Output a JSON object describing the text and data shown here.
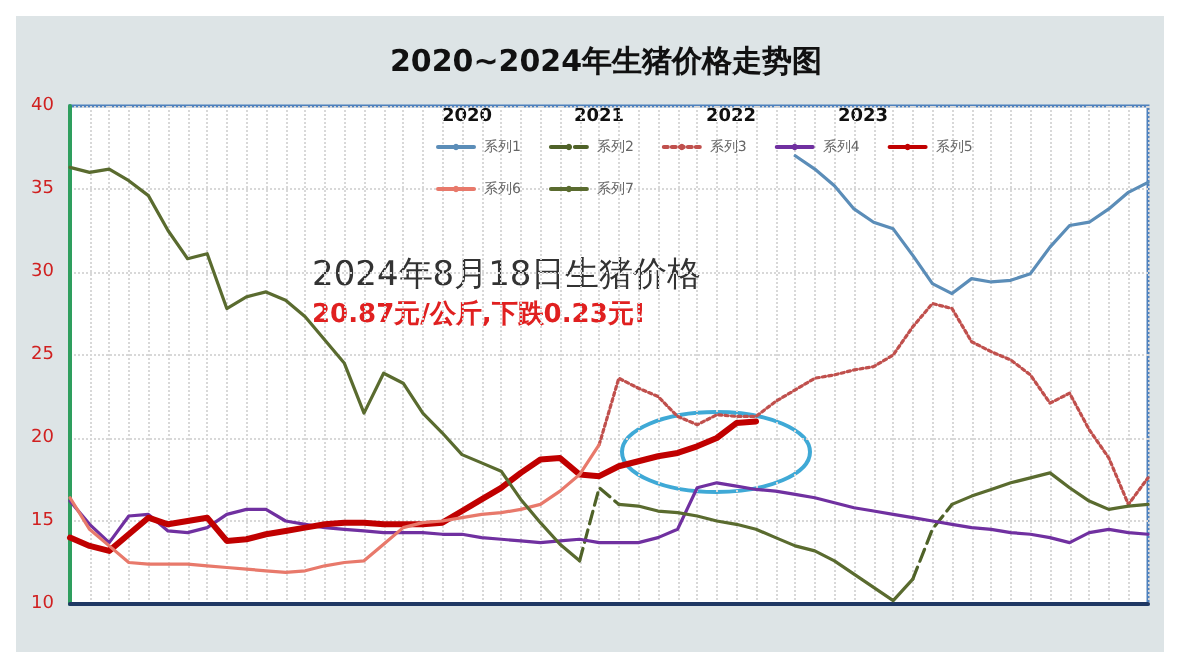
{
  "chart_data": {
    "type": "line",
    "title": "2020~2024年生猪价格走势图",
    "annotations": [
      "2020",
      "2021",
      "2022",
      "2023",
      "2024年8月18日生猪价格",
      "20.87元/公斤,下跌0.23元!"
    ],
    "categories": [
      null,
      null,
      null,
      null,
      null,
      null,
      null,
      null,
      null,
      null,
      null,
      null,
      null,
      null,
      null,
      null,
      null,
      null,
      null,
      null,
      null,
      null,
      null,
      null,
      null,
      null,
      null,
      null,
      null,
      null,
      null,
      null,
      null,
      null,
      null,
      null,
      null,
      null,
      null,
      null,
      null,
      null,
      null,
      null,
      null,
      null,
      null,
      null,
      null,
      null,
      null,
      null,
      null,
      null,
      null,
      null
    ],
    "ylim": [
      10,
      40
    ],
    "yticks": [
      10,
      15,
      20,
      25,
      30,
      35,
      40
    ],
    "grid": true,
    "legend": "top",
    "marker": "none",
    "tick_labels": "y",
    "series": [
      {
        "name": "系列1",
        "color": "#5b8db8",
        "line_style": "solid",
        "values": [
          null,
          null,
          null,
          null,
          null,
          null,
          null,
          null,
          null,
          null,
          null,
          null,
          null,
          null,
          null,
          null,
          null,
          null,
          null,
          null,
          null,
          null,
          null,
          null,
          null,
          null,
          null,
          null,
          null,
          null,
          null,
          null,
          null,
          null,
          null,
          null,
          null,
          37.0,
          36.2,
          35.2,
          33.8,
          33.0,
          32.6,
          31.0,
          29.3,
          28.7,
          29.6,
          29.4,
          29.5,
          29.9,
          31.5,
          32.8,
          33.0,
          33.8,
          34.8,
          35.4
        ]
      },
      {
        "name": "系列2",
        "color": "#4f6228",
        "line_style": "dashed",
        "values": [
          null,
          null,
          null,
          null,
          null,
          null,
          null,
          null,
          null,
          null,
          null,
          null,
          null,
          null,
          null,
          null,
          null,
          null,
          null,
          null,
          null,
          null,
          null,
          null,
          null,
          null,
          12.6,
          17.0,
          16.0,
          null,
          null,
          null,
          null,
          null,
          null,
          null,
          null,
          null,
          null,
          null,
          null,
          null,
          null,
          11.5,
          14.5,
          16.0,
          null,
          null,
          null,
          null,
          null,
          null,
          null,
          null,
          null,
          null
        ]
      },
      {
        "name": "系列3",
        "color": "#c0504d",
        "line_style": "dotted",
        "values": [
          null,
          null,
          null,
          null,
          null,
          null,
          null,
          null,
          null,
          null,
          null,
          null,
          null,
          null,
          null,
          null,
          null,
          null,
          null,
          null,
          null,
          null,
          null,
          null,
          null,
          null,
          null,
          19.6,
          23.6,
          23.0,
          22.5,
          21.3,
          20.8,
          21.4,
          21.3,
          21.3,
          22.2,
          22.9,
          23.6,
          23.8,
          24.1,
          24.3,
          25.0,
          26.7,
          28.1,
          27.8,
          25.8,
          25.2,
          24.7,
          23.8,
          22.1,
          22.7,
          20.5,
          18.8,
          16.0,
          17.6
        ]
      },
      {
        "name": "系列4",
        "color": "#7030a0",
        "line_style": "solid",
        "values": [
          16.2,
          14.8,
          13.7,
          15.3,
          15.4,
          14.4,
          14.3,
          14.6,
          15.4,
          15.7,
          15.7,
          15.0,
          14.8,
          14.6,
          14.5,
          14.4,
          14.3,
          14.3,
          14.3,
          14.2,
          14.2,
          14.0,
          13.9,
          13.8,
          13.7,
          13.8,
          13.9,
          13.7,
          13.7,
          13.7,
          14.0,
          14.5,
          17.0,
          17.3,
          17.1,
          16.9,
          16.8,
          16.6,
          16.4,
          16.1,
          15.8,
          15.6,
          15.4,
          15.2,
          15.0,
          14.8,
          14.6,
          14.5,
          14.3,
          14.2,
          14.0,
          13.7,
          14.3,
          14.5,
          14.3,
          14.2
        ]
      },
      {
        "name": "系列5",
        "color": "#c00000",
        "line_style": "solid",
        "values": [
          14.0,
          13.5,
          13.2,
          14.2,
          15.2,
          14.8,
          15.0,
          15.2,
          13.8,
          13.9,
          14.2,
          14.4,
          14.6,
          14.8,
          14.9,
          14.9,
          14.8,
          14.8,
          14.8,
          14.9,
          15.6,
          16.3,
          17.0,
          17.9,
          18.7,
          18.8,
          17.8,
          17.7,
          18.3,
          18.6,
          18.9,
          19.1,
          19.5,
          20.0,
          20.9,
          21.0,
          null,
          null,
          null,
          null,
          null,
          null,
          null,
          null,
          null,
          null,
          null,
          null,
          null,
          null,
          null,
          null,
          null,
          null,
          null,
          null
        ]
      },
      {
        "name": "系列6",
        "color": "#e8796b",
        "line_style": "solid",
        "values": [
          16.4,
          14.5,
          13.5,
          12.5,
          12.4,
          12.4,
          12.4,
          12.3,
          12.2,
          12.1,
          12.0,
          11.9,
          12.0,
          12.3,
          12.5,
          12.6,
          13.6,
          14.6,
          14.9,
          15.0,
          15.2,
          15.4,
          15.5,
          15.7,
          16.0,
          16.8,
          17.8,
          19.6,
          null,
          null,
          null,
          null,
          null,
          null,
          null,
          null,
          null,
          null,
          null,
          null,
          null,
          null,
          null,
          null,
          null,
          null,
          null,
          null,
          null,
          null,
          null,
          null,
          null,
          null,
          null,
          null
        ]
      },
      {
        "name": "系列7",
        "color": "#5a6b2f",
        "line_style": "solid",
        "values": [
          36.3,
          36.0,
          36.2,
          35.5,
          34.6,
          32.5,
          30.8,
          31.1,
          27.8,
          28.5,
          28.8,
          28.3,
          27.3,
          25.9,
          24.5,
          21.5,
          23.9,
          23.3,
          21.5,
          20.3,
          19.0,
          18.5,
          18.0,
          16.3,
          14.9,
          13.6,
          12.6,
          null,
          16.0,
          15.9,
          15.6,
          15.5,
          15.3,
          15.0,
          14.8,
          14.5,
          14.0,
          13.5,
          13.2,
          12.6,
          11.8,
          11.0,
          10.2,
          11.5,
          null,
          16.0,
          16.5,
          16.9,
          17.3,
          17.6,
          17.9,
          17.0,
          16.2,
          15.7,
          15.9,
          16.0
        ]
      }
    ]
  }
}
